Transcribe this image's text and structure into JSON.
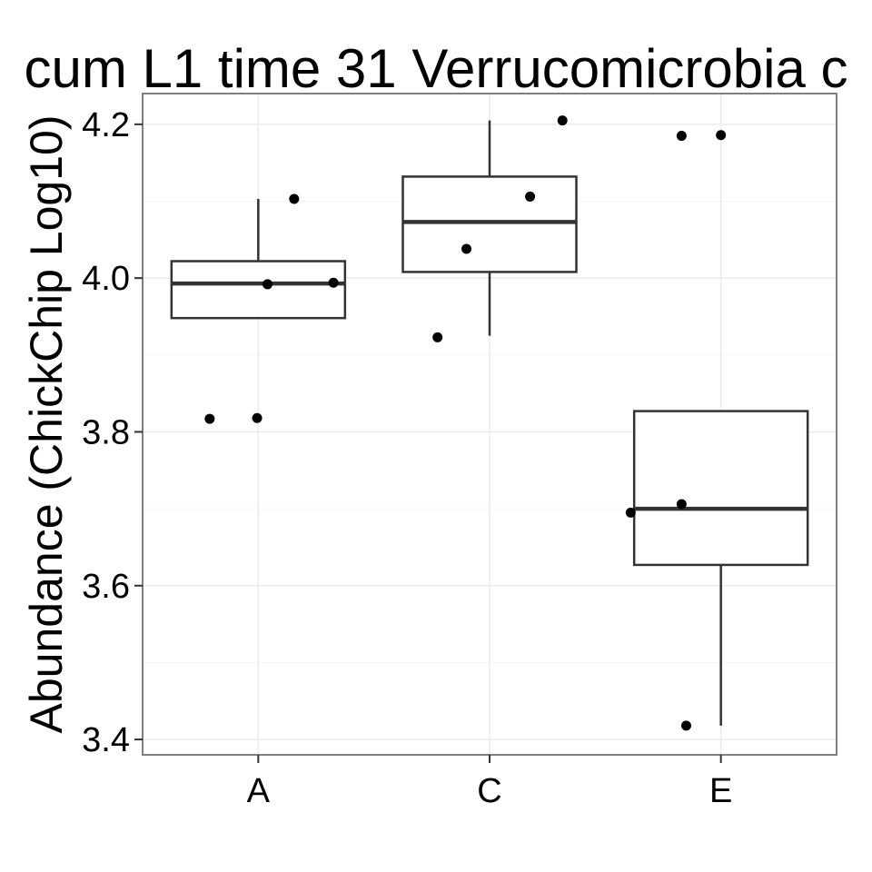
{
  "chart_data": {
    "type": "box",
    "title": "cum L1 time 31 Verrucomicrobia c",
    "ylabel": "Abundance (ChickChip Log10)",
    "xlabel": "",
    "categories": [
      "A",
      "C",
      "E"
    ],
    "ylim": [
      3.38,
      4.24
    ],
    "yticks": [
      "3.4",
      "3.6",
      "3.8",
      "4.0",
      "4.2"
    ],
    "ytick_values": [
      3.4,
      3.6,
      3.8,
      4.0,
      4.2
    ],
    "ygrid_minor": [
      3.5,
      3.7,
      3.9,
      4.1
    ],
    "grid": true,
    "boxes": [
      {
        "category": "A",
        "q1": 3.948,
        "median": 3.993,
        "q3": 4.022,
        "whisker_low": 3.948,
        "whisker_high": 4.103
      },
      {
        "category": "C",
        "q1": 4.008,
        "median": 4.073,
        "q3": 4.132,
        "whisker_low": 3.925,
        "whisker_high": 4.205
      },
      {
        "category": "E",
        "q1": 3.627,
        "median": 3.7,
        "q3": 3.827,
        "whisker_low": 3.418,
        "whisker_high": 3.827
      }
    ],
    "points": [
      {
        "category": "A",
        "jitter": -0.21,
        "y": 3.817
      },
      {
        "category": "A",
        "jitter": -0.005,
        "y": 3.818
      },
      {
        "category": "A",
        "jitter": 0.04,
        "y": 3.992
      },
      {
        "category": "A",
        "jitter": 0.155,
        "y": 4.103
      },
      {
        "category": "A",
        "jitter": 0.325,
        "y": 3.994
      },
      {
        "category": "C",
        "jitter": -0.225,
        "y": 3.923
      },
      {
        "category": "C",
        "jitter": -0.1,
        "y": 4.038
      },
      {
        "category": "C",
        "jitter": 0.175,
        "y": 4.106
      },
      {
        "category": "C",
        "jitter": 0.315,
        "y": 4.205
      },
      {
        "category": "E",
        "jitter": -0.39,
        "y": 3.695
      },
      {
        "category": "E",
        "jitter": -0.17,
        "y": 3.706
      },
      {
        "category": "E",
        "jitter": -0.17,
        "y": 4.185
      },
      {
        "category": "E",
        "jitter": 0.0,
        "y": 4.186
      },
      {
        "category": "E",
        "jitter": -0.15,
        "y": 3.418
      }
    ]
  }
}
